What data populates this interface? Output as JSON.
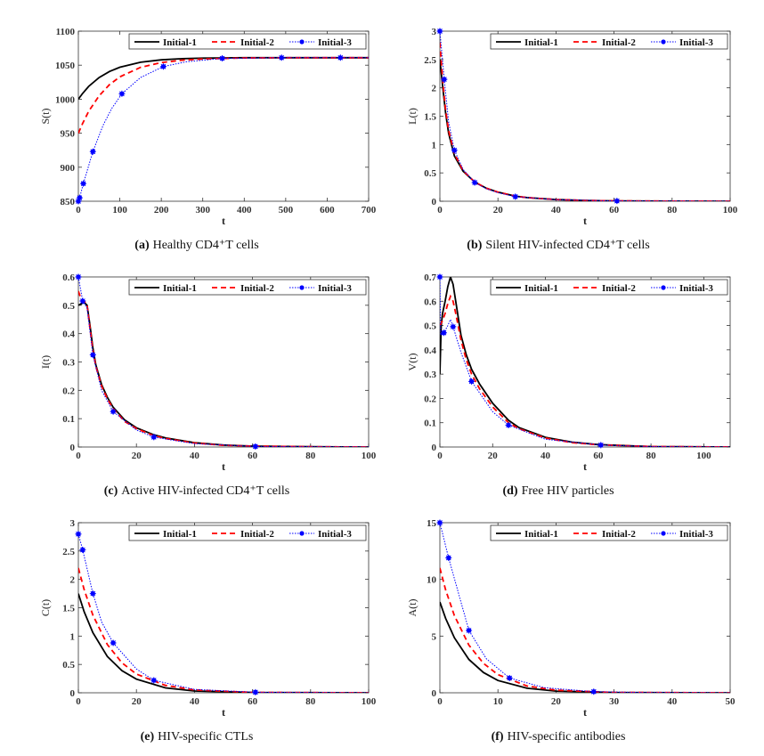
{
  "colors": {
    "initial_1": "#000000",
    "initial_2": "#ff0000",
    "initial_3": "#0000ff"
  },
  "chart_data": [
    {
      "type": "line",
      "panel": "(a)",
      "caption": "Healthy CD4⁺T cells",
      "xlabel": "t",
      "ylabel": "S(t)",
      "xlim": [
        0,
        700
      ],
      "ylim": [
        850,
        1100
      ],
      "xticks": [
        0,
        100,
        200,
        300,
        400,
        500,
        600,
        700
      ],
      "yticks": [
        850,
        900,
        950,
        1000,
        1050,
        1100
      ],
      "legend": "top-right",
      "series": [
        {
          "name": "Initial-1",
          "style": "solid",
          "x": [
            0,
            10,
            25,
            50,
            75,
            100,
            150,
            200,
            250,
            300,
            400,
            500,
            600,
            700
          ],
          "y": [
            1000,
            1008.4,
            1018.8,
            1031.8,
            1040.7,
            1047,
            1054.3,
            1057.8,
            1059.5,
            1060.3,
            1061,
            1061,
            1061,
            1061
          ]
        },
        {
          "name": "Initial-2",
          "style": "dashed",
          "x": [
            0,
            10,
            25,
            50,
            75,
            100,
            150,
            200,
            250,
            300,
            400,
            500,
            600,
            700
          ],
          "y": [
            950,
            964.2,
            982.2,
            1005,
            1021.3,
            1032.8,
            1046.8,
            1053.8,
            1057.3,
            1059.2,
            1060.6,
            1061,
            1061,
            1061
          ]
        },
        {
          "name": "Initial-3",
          "style": "dotted-marker",
          "x": [
            0,
            3,
            12,
            35,
            60,
            80,
            105,
            150,
            205,
            260,
            347,
            490,
            632,
            700
          ],
          "y": [
            850,
            855,
            876,
            923,
            962,
            986,
            1008,
            1032,
            1048,
            1055,
            1060,
            1061,
            1061,
            1061
          ],
          "markers": [
            [
              0,
              850
            ],
            [
              3,
              855
            ],
            [
              12,
              876
            ],
            [
              35,
              923
            ],
            [
              105,
              1008
            ],
            [
              205,
              1048
            ],
            [
              347,
              1060
            ],
            [
              490,
              1061
            ],
            [
              632,
              1061
            ]
          ]
        }
      ]
    },
    {
      "type": "line",
      "panel": "(b)",
      "caption": "Silent HIV-infected CD4⁺T cells",
      "xlabel": "t",
      "ylabel": "L(t)",
      "xlim": [
        0,
        100
      ],
      "ylim": [
        0,
        3
      ],
      "xticks": [
        0,
        20,
        40,
        60,
        80,
        100
      ],
      "yticks": [
        0,
        0.5,
        1,
        1.5,
        2,
        2.5,
        3
      ],
      "legend": "top-right",
      "series": [
        {
          "name": "Initial-1",
          "style": "solid",
          "x": [
            0,
            1,
            2,
            3,
            5,
            8,
            12,
            16,
            20,
            26,
            30,
            40,
            50,
            60,
            80,
            100
          ],
          "y": [
            2.5,
            2.0,
            1.55,
            1.2,
            0.8,
            0.53,
            0.34,
            0.23,
            0.16,
            0.09,
            0.065,
            0.03,
            0.014,
            0.006,
            0.001,
            0
          ]
        },
        {
          "name": "Initial-2",
          "style": "dashed",
          "x": [
            0,
            1,
            2,
            3,
            5,
            8,
            12,
            16,
            20,
            26,
            30,
            40,
            50,
            60,
            80,
            100
          ],
          "y": [
            2.8,
            2.1,
            1.6,
            1.25,
            0.84,
            0.54,
            0.34,
            0.23,
            0.16,
            0.09,
            0.065,
            0.03,
            0.014,
            0.006,
            0.001,
            0
          ]
        },
        {
          "name": "Initial-3",
          "style": "dotted-marker",
          "x": [
            0,
            1.5,
            3,
            5,
            8,
            12,
            16,
            20,
            26,
            40,
            61,
            80,
            100
          ],
          "y": [
            3,
            2.15,
            1.4,
            0.9,
            0.56,
            0.33,
            0.22,
            0.15,
            0.08,
            0.028,
            0.005,
            0.001,
            0
          ],
          "markers": [
            [
              0,
              3
            ],
            [
              1.5,
              2.15
            ],
            [
              5,
              0.9
            ],
            [
              12,
              0.33
            ],
            [
              26,
              0.08
            ],
            [
              61,
              0.005
            ]
          ]
        }
      ]
    },
    {
      "type": "line",
      "panel": "(c)",
      "caption": "Active HIV-infected CD4⁺T cells",
      "xlabel": "t",
      "ylabel": "I(t)",
      "xlim": [
        0,
        100
      ],
      "ylim": [
        0,
        0.6
      ],
      "xticks": [
        0,
        20,
        40,
        60,
        80,
        100
      ],
      "yticks": [
        0,
        0.1,
        0.2,
        0.3,
        0.4,
        0.5,
        0.6
      ],
      "legend": "top-right",
      "series": [
        {
          "name": "Initial-1",
          "style": "solid",
          "x": [
            0,
            1,
            2,
            3,
            4,
            5,
            6,
            8,
            10,
            12,
            16,
            20,
            26,
            30,
            40,
            50,
            60,
            80,
            100
          ],
          "y": [
            0.5,
            0.505,
            0.51,
            0.5,
            0.43,
            0.35,
            0.29,
            0.22,
            0.175,
            0.14,
            0.095,
            0.068,
            0.043,
            0.032,
            0.015,
            0.007,
            0.003,
            0.001,
            0
          ]
        },
        {
          "name": "Initial-2",
          "style": "dashed",
          "x": [
            0,
            1,
            2,
            3,
            4,
            5,
            6,
            8,
            10,
            12,
            16,
            20,
            26,
            30,
            40,
            50,
            60,
            80,
            100
          ],
          "y": [
            0.55,
            0.52,
            0.515,
            0.5,
            0.42,
            0.34,
            0.285,
            0.215,
            0.17,
            0.135,
            0.09,
            0.065,
            0.04,
            0.03,
            0.014,
            0.006,
            0.003,
            0.001,
            0
          ]
        },
        {
          "name": "Initial-3",
          "style": "dotted-marker",
          "x": [
            0,
            1.5,
            3,
            5,
            8,
            12,
            20,
            26,
            40,
            61,
            100
          ],
          "y": [
            0.6,
            0.515,
            0.49,
            0.325,
            0.2,
            0.125,
            0.06,
            0.035,
            0.012,
            0.002,
            0
          ],
          "markers": [
            [
              0,
              0.6
            ],
            [
              1.5,
              0.515
            ],
            [
              5,
              0.325
            ],
            [
              12,
              0.125
            ],
            [
              26,
              0.035
            ],
            [
              61,
              0.002
            ]
          ]
        }
      ]
    },
    {
      "type": "line",
      "panel": "(d)",
      "caption": "Free HIV particles",
      "xlabel": "t",
      "ylabel": "V(t)",
      "xlim": [
        0,
        110
      ],
      "ylim": [
        0,
        0.7
      ],
      "xticks": [
        0,
        20,
        40,
        60,
        80,
        100
      ],
      "yticks": [
        0,
        0.1,
        0.2,
        0.3,
        0.4,
        0.5,
        0.6,
        0.7
      ],
      "legend": "top-right",
      "series": [
        {
          "name": "Initial-1",
          "style": "solid",
          "x": [
            0,
            0.5,
            1,
            2,
            3,
            4,
            5,
            6,
            8,
            10,
            12,
            15,
            20,
            26,
            30,
            40,
            50,
            60,
            80,
            110
          ],
          "y": [
            0.3,
            0.5,
            0.55,
            0.6,
            0.66,
            0.7,
            0.67,
            0.6,
            0.46,
            0.38,
            0.32,
            0.26,
            0.18,
            0.11,
            0.08,
            0.04,
            0.02,
            0.01,
            0.002,
            0
          ]
        },
        {
          "name": "Initial-2",
          "style": "dashed",
          "x": [
            0,
            1,
            2,
            3,
            4,
            5,
            6,
            8,
            10,
            12,
            15,
            20,
            26,
            30,
            40,
            50,
            60,
            80,
            110
          ],
          "y": [
            0.5,
            0.52,
            0.55,
            0.59,
            0.62,
            0.6,
            0.55,
            0.44,
            0.36,
            0.3,
            0.24,
            0.165,
            0.1,
            0.075,
            0.037,
            0.018,
            0.009,
            0.002,
            0
          ]
        },
        {
          "name": "Initial-3",
          "style": "dotted-marker",
          "x": [
            0,
            0.3,
            1.5,
            3,
            4,
            5,
            8,
            12,
            20,
            26,
            40,
            61,
            80,
            110
          ],
          "y": [
            0.7,
            0.46,
            0.47,
            0.5,
            0.525,
            0.495,
            0.39,
            0.27,
            0.145,
            0.09,
            0.032,
            0.008,
            0.002,
            0
          ],
          "markers": [
            [
              0,
              0.7
            ],
            [
              1.5,
              0.47
            ],
            [
              5,
              0.495
            ],
            [
              12,
              0.27
            ],
            [
              26,
              0.09
            ],
            [
              61,
              0.008
            ]
          ]
        }
      ]
    },
    {
      "type": "line",
      "panel": "(e)",
      "caption": "HIV-specific CTLs",
      "xlabel": "t",
      "ylabel": "C(t)",
      "xlim": [
        0,
        100
      ],
      "ylim": [
        0,
        3
      ],
      "xticks": [
        0,
        20,
        40,
        60,
        80,
        100
      ],
      "yticks": [
        0,
        0.5,
        1,
        1.5,
        2,
        2.5,
        3
      ],
      "legend": "top-right",
      "series": [
        {
          "name": "Initial-1",
          "style": "solid",
          "x": [
            0,
            2,
            5,
            10,
            15,
            20,
            30,
            40,
            60,
            100
          ],
          "y": [
            1.75,
            1.43,
            1.06,
            0.64,
            0.39,
            0.24,
            0.087,
            0.032,
            0.004,
            0
          ]
        },
        {
          "name": "Initial-2",
          "style": "dashed",
          "x": [
            0,
            2,
            5,
            10,
            15,
            20,
            30,
            40,
            60,
            100
          ],
          "y": [
            2.2,
            1.82,
            1.37,
            0.85,
            0.53,
            0.33,
            0.13,
            0.05,
            0.007,
            0
          ]
        },
        {
          "name": "Initial-3",
          "style": "dotted-marker",
          "x": [
            0,
            1.5,
            5,
            8,
            12,
            20,
            26,
            40,
            61,
            100
          ],
          "y": [
            2.8,
            2.52,
            1.75,
            1.25,
            0.88,
            0.42,
            0.22,
            0.06,
            0.01,
            0
          ],
          "markers": [
            [
              0,
              2.8
            ],
            [
              1.5,
              2.52
            ],
            [
              5,
              1.75
            ],
            [
              12,
              0.88
            ],
            [
              26,
              0.22
            ],
            [
              61,
              0.01
            ]
          ]
        }
      ]
    },
    {
      "type": "line",
      "panel": "(f)",
      "caption": "HIV-specific antibodies",
      "xlabel": "t",
      "ylabel": "A(t)",
      "xlim": [
        0,
        50
      ],
      "ylim": [
        0,
        15
      ],
      "xticks": [
        0,
        10,
        20,
        30,
        40,
        50
      ],
      "yticks": [
        0,
        5,
        10,
        15
      ],
      "legend": "top-right",
      "series": [
        {
          "name": "Initial-1",
          "style": "solid",
          "x": [
            0,
            1,
            2.5,
            5,
            7.5,
            10,
            15,
            20,
            30,
            50
          ],
          "y": [
            8,
            6.55,
            4.85,
            2.94,
            1.79,
            1.08,
            0.4,
            0.15,
            0.02,
            0
          ]
        },
        {
          "name": "Initial-2",
          "style": "dashed",
          "x": [
            0,
            1,
            2.5,
            5,
            7.5,
            10,
            15,
            20,
            30,
            50
          ],
          "y": [
            11,
            9.06,
            6.8,
            4.2,
            2.6,
            1.6,
            0.6,
            0.23,
            0.03,
            0
          ]
        },
        {
          "name": "Initial-3",
          "style": "dotted-marker",
          "x": [
            0,
            1.5,
            5,
            8,
            12,
            18,
            26.5,
            35,
            50
          ],
          "y": [
            15,
            11.9,
            5.5,
            3.0,
            1.3,
            0.45,
            0.1,
            0.02,
            0
          ],
          "markers": [
            [
              0,
              15
            ],
            [
              1.5,
              11.9
            ],
            [
              5,
              5.5
            ],
            [
              12,
              1.3
            ],
            [
              26.5,
              0.1
            ]
          ]
        }
      ]
    }
  ]
}
